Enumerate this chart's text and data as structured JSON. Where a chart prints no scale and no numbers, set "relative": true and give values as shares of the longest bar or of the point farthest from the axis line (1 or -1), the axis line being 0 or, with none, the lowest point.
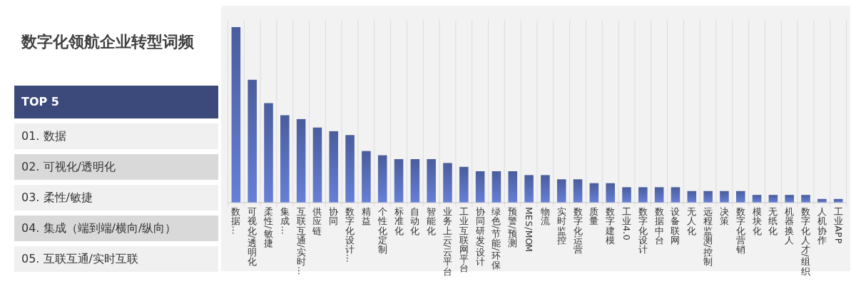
{
  "chart_data": {
    "type": "bar",
    "title": "数字化领航企业转型词频",
    "relative": true,
    "grid": "x",
    "color": "#4a5d9c",
    "annotations": [
      "TOP 5",
      "01.  数据",
      "02.  可视化/透明化",
      "03.  柔性/敏捷",
      "04.  集成（端到端/横向/纵向）",
      "05.  互联互通/实时互联"
    ],
    "categories": [
      "数据…",
      "可视化/透明化",
      "柔性/敏捷",
      "集成…",
      "互联互通/实时…",
      "供应链",
      "协同",
      "数字化设计…",
      "精益",
      "个性化定制",
      "标准化",
      "自动化",
      "智能化",
      "业务上云/云平台",
      "工业互联网平台",
      "协同研发/设计",
      "绿色/节能/环保",
      "预警/预测",
      "MES/MOM",
      "物流",
      "实时监控",
      "数字化运营",
      "质量",
      "数字建模",
      "工业4.0",
      "数字化设计",
      "数据中台",
      "设备联网",
      "无人化",
      "远程监测/控制",
      "决策",
      "数字化营销",
      "模块化",
      "无纸化",
      "机器换人",
      "数字化人才/组织",
      "人机协作",
      "工业APP"
    ],
    "values": [
      1,
      0.7,
      0.567,
      0.498,
      0.476,
      0.428,
      0.407,
      0.385,
      0.294,
      0.27,
      0.248,
      0.248,
      0.248,
      0.226,
      0.204,
      0.179,
      0.179,
      0.179,
      0.157,
      0.157,
      0.133,
      0.133,
      0.111,
      0.111,
      0.088,
      0.088,
      0.088,
      0.088,
      0.066,
      0.066,
      0.066,
      0.066,
      0.044,
      0.044,
      0.044,
      0.044,
      0.021,
      0.021
    ]
  }
}
